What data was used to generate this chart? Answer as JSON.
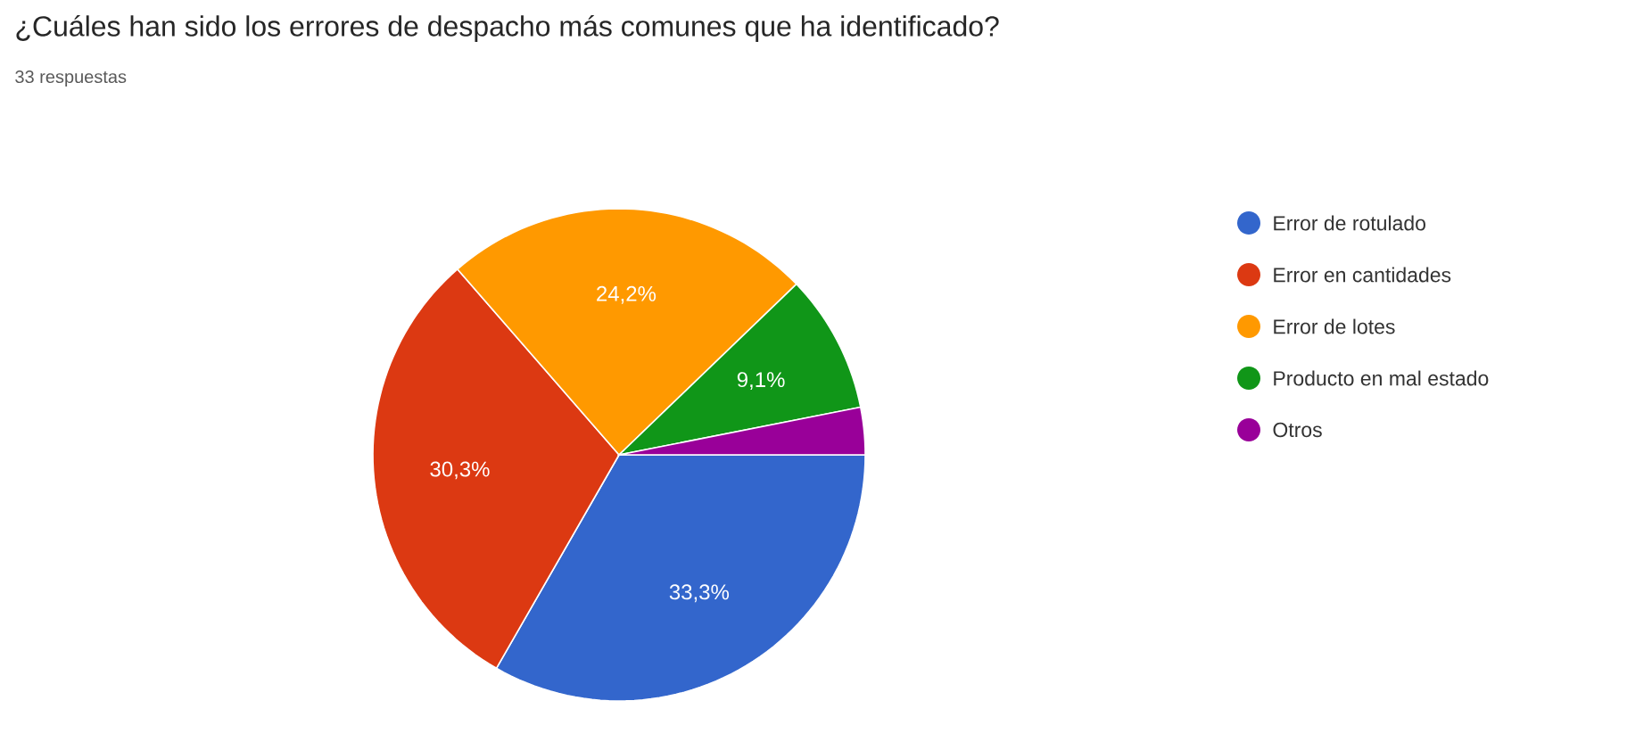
{
  "chart_data": {
    "type": "pie",
    "title": "¿Cuáles han sido los errores de despacho más comunes que ha identificado?",
    "subtitle": "33 respuestas",
    "categories": [
      "Error de rotulado",
      "Error en cantidades",
      "Error de lotes",
      "Producto en mal estado",
      "Otros"
    ],
    "values": [
      33.3,
      30.3,
      24.2,
      9.1,
      3.1
    ],
    "colors": [
      "#3366cc",
      "#dc3912",
      "#ff9900",
      "#109618",
      "#990099"
    ],
    "value_labels": [
      "33,3%",
      "30,3%",
      "24,2%",
      "9,1%",
      null
    ],
    "legend": "right"
  }
}
